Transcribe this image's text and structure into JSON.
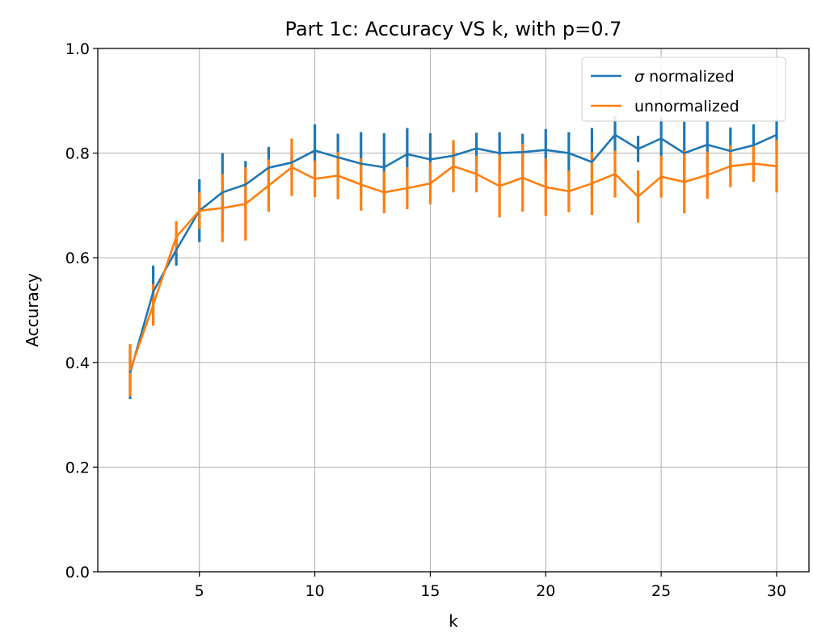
{
  "chart_data": {
    "type": "line",
    "title": "Part 1c: Accuracy VS k, with p=0.7",
    "xlabel": "k",
    "ylabel": "Accuracy",
    "xlim": [
      0.6,
      31.4
    ],
    "ylim": [
      0.0,
      1.0
    ],
    "xticks": [
      "5",
      "10",
      "15",
      "20",
      "25",
      "30"
    ],
    "yticks": [
      "0.0",
      "0.2",
      "0.4",
      "0.6",
      "0.8",
      "1.0"
    ],
    "grid": true,
    "legend_position": "top-right",
    "x": [
      2,
      3,
      4,
      5,
      6,
      7,
      8,
      9,
      10,
      11,
      12,
      13,
      14,
      15,
      16,
      17,
      18,
      19,
      20,
      21,
      22,
      23,
      24,
      25,
      26,
      27,
      28,
      29,
      30
    ],
    "series": [
      {
        "name": "σ normalized",
        "legend_symbol": "σ",
        "legend_text": "normalized",
        "color": "#1f77b4",
        "values": [
          0.38,
          0.535,
          0.615,
          0.69,
          0.725,
          0.74,
          0.772,
          0.782,
          0.805,
          0.792,
          0.78,
          0.773,
          0.798,
          0.788,
          0.795,
          0.809,
          0.8,
          0.802,
          0.806,
          0.8,
          0.783,
          0.835,
          0.808,
          0.828,
          0.8,
          0.816,
          0.804,
          0.815,
          0.835
        ],
        "err": [
          0.05,
          0.05,
          0.03,
          0.06,
          0.075,
          0.045,
          0.04,
          0.025,
          0.05,
          0.045,
          0.06,
          0.065,
          0.05,
          0.05,
          0.025,
          0.03,
          0.04,
          0.035,
          0.04,
          0.04,
          0.065,
          0.035,
          0.025,
          0.04,
          0.06,
          0.045,
          0.045,
          0.04,
          0.03
        ]
      },
      {
        "name": "unnormalized",
        "color": "#ff7f0e",
        "values": [
          0.385,
          0.51,
          0.64,
          0.69,
          0.695,
          0.703,
          0.738,
          0.773,
          0.751,
          0.757,
          0.74,
          0.725,
          0.733,
          0.742,
          0.775,
          0.76,
          0.737,
          0.753,
          0.735,
          0.727,
          0.742,
          0.76,
          0.717,
          0.755,
          0.745,
          0.758,
          0.775,
          0.78,
          0.775
        ],
        "err": [
          0.05,
          0.04,
          0.03,
          0.035,
          0.065,
          0.07,
          0.05,
          0.055,
          0.035,
          0.045,
          0.05,
          0.04,
          0.04,
          0.04,
          0.05,
          0.035,
          0.06,
          0.065,
          0.055,
          0.04,
          0.06,
          0.045,
          0.05,
          0.04,
          0.06,
          0.045,
          0.04,
          0.035,
          0.05
        ]
      }
    ]
  }
}
